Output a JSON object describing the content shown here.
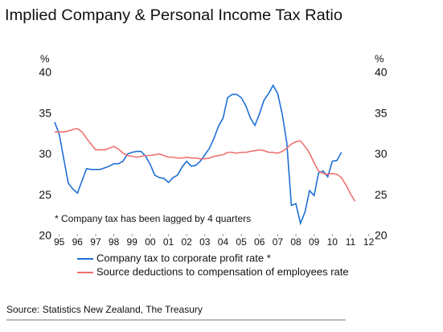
{
  "chart_data": {
    "type": "line",
    "title": "Implied Company & Personal Income Tax Ratio",
    "y_label": "%",
    "y2_label": "%",
    "annotation": "* Company tax has been lagged by 4 quarters",
    "source": "Source: Statistics New Zealand, The Treasury",
    "grid": false,
    "legend": "bottom",
    "xlim": [
      1994.75,
      2012.15
    ],
    "xticks": [
      {
        "value": 1995,
        "label": "95"
      },
      {
        "value": 1996,
        "label": "96"
      },
      {
        "value": 1997,
        "label": "97"
      },
      {
        "value": 1998,
        "label": "98"
      },
      {
        "value": 1999,
        "label": "99"
      },
      {
        "value": 2000,
        "label": "00"
      },
      {
        "value": 2001,
        "label": "01"
      },
      {
        "value": 2002,
        "label": "02"
      },
      {
        "value": 2003,
        "label": "03"
      },
      {
        "value": 2004,
        "label": "04"
      },
      {
        "value": 2005,
        "label": "05"
      },
      {
        "value": 2006,
        "label": "06"
      },
      {
        "value": 2007,
        "label": "07"
      },
      {
        "value": 2008,
        "label": "08"
      },
      {
        "value": 2009,
        "label": "09"
      },
      {
        "value": 2010,
        "label": "10"
      },
      {
        "value": 2011,
        "label": "11"
      },
      {
        "value": 2012,
        "label": "12"
      }
    ],
    "ylim": [
      20,
      40
    ],
    "yticks": [
      20,
      25,
      30,
      35,
      40
    ],
    "y2lim": [
      20,
      40
    ],
    "y2ticks": [
      20,
      25,
      30,
      35,
      40
    ],
    "x": [
      1994.75,
      1995,
      1995.25,
      1995.5,
      1995.75,
      1996,
      1996.25,
      1996.5,
      1996.75,
      1997,
      1997.25,
      1997.5,
      1997.75,
      1998,
      1998.25,
      1998.5,
      1998.75,
      1999,
      1999.25,
      1999.5,
      1999.75,
      2000,
      2000.25,
      2000.5,
      2000.75,
      2001,
      2001.25,
      2001.5,
      2001.75,
      2002,
      2002.25,
      2002.5,
      2002.75,
      2003,
      2003.25,
      2003.5,
      2003.75,
      2004,
      2004.25,
      2004.5,
      2004.75,
      2005,
      2005.25,
      2005.5,
      2005.75,
      2006,
      2006.25,
      2006.5,
      2006.75,
      2007,
      2007.25,
      2007.5,
      2007.75,
      2008,
      2008.25,
      2008.5,
      2008.75,
      2009,
      2009.25,
      2009.5,
      2009.75,
      2010,
      2010.25,
      2010.5,
      2010.75,
      2011,
      2011.25
    ],
    "series": [
      {
        "name": "Company tax to corporate profit rate *",
        "color": "#1f6fd6",
        "values": [
          34,
          32.5,
          29.5,
          26.5,
          25.8,
          25.3,
          26.8,
          28.3,
          28.2,
          28.2,
          28.2,
          28.4,
          28.6,
          28.9,
          28.9,
          29.2,
          30.1,
          30.3,
          30.4,
          30.4,
          29.8,
          28.8,
          27.5,
          27.2,
          27.1,
          26.6,
          27.2,
          27.5,
          28.5,
          29.2,
          28.6,
          28.7,
          29.2,
          30,
          30.8,
          32,
          33.5,
          34.5,
          37,
          37.4,
          37.4,
          37,
          36,
          34.5,
          33.6,
          35,
          36.7,
          37.5,
          38.5,
          37.5,
          35,
          31.5,
          23.8,
          24,
          21.6,
          23,
          25.6,
          25,
          27.8,
          28,
          27.3,
          29.2,
          29.3,
          30.3,
          null,
          null,
          null
        ]
      },
      {
        "name": "Source deductions to compensation of employees rate",
        "color": "#f07070",
        "values": [
          32.8,
          32.8,
          32.8,
          32.9,
          33.1,
          33.2,
          32.8,
          32,
          31.3,
          30.6,
          30.6,
          30.6,
          30.8,
          31,
          30.7,
          30.2,
          29.9,
          29.8,
          29.7,
          29.8,
          29.9,
          29.9,
          30,
          30.1,
          29.9,
          29.7,
          29.7,
          29.6,
          29.6,
          29.7,
          29.6,
          29.6,
          29.5,
          29.5,
          29.6,
          29.8,
          29.9,
          30,
          30.3,
          30.3,
          30.2,
          30.3,
          30.3,
          30.4,
          30.5,
          30.6,
          30.5,
          30.3,
          30.3,
          30.2,
          30.4,
          30.8,
          31.3,
          31.6,
          31.7,
          31,
          30.2,
          29,
          28,
          27.7,
          27.6,
          27.7,
          27.6,
          27.2,
          26.3,
          25.2,
          24.3
        ]
      }
    ]
  }
}
